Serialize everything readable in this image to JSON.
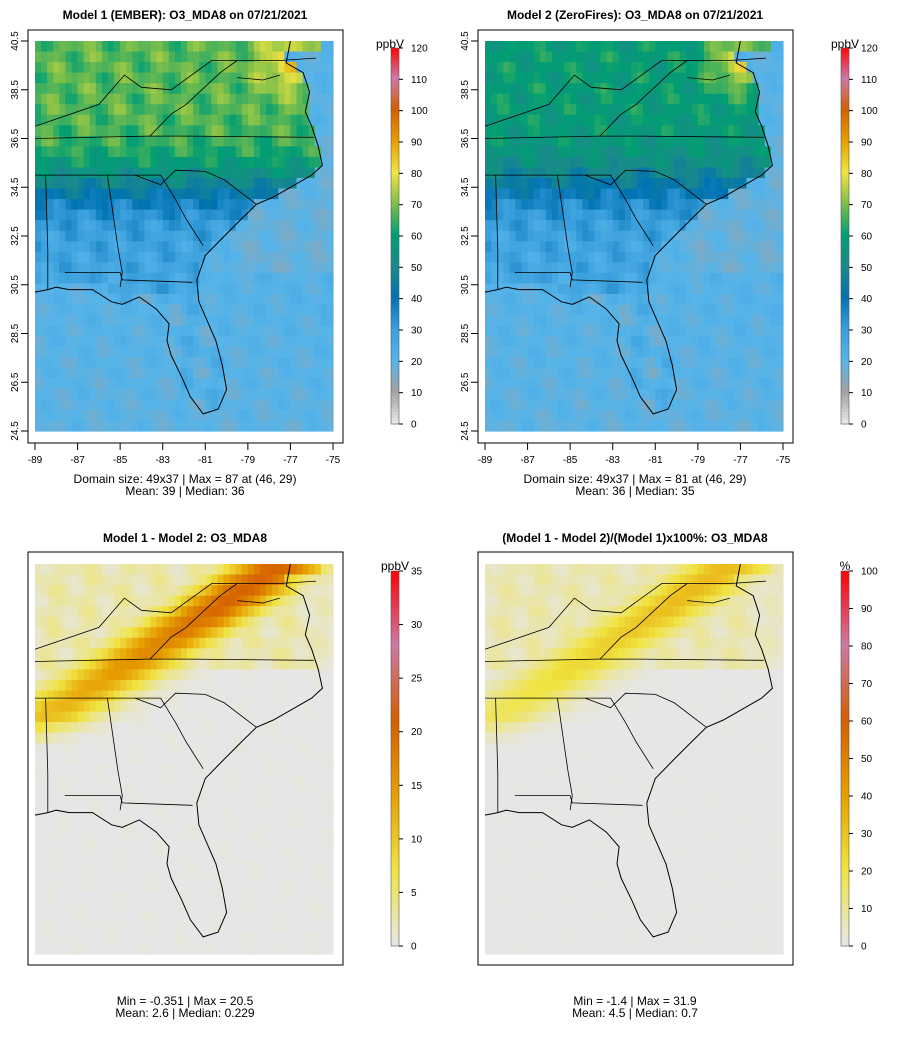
{
  "chart_data": [
    {
      "type": "heatmap",
      "panel_id": "model1",
      "title": "Model 1 (EMBER): O3_MDA8 on 07/21/2021",
      "variable": "O3_MDA8",
      "date": "07/21/2021",
      "x_ticks": [
        "-89",
        "-87",
        "-85",
        "-83",
        "-81",
        "-79",
        "-77",
        "-75"
      ],
      "y_ticks": [
        "24.5",
        "26.5",
        "28.5",
        "30.5",
        "32.5",
        "34.5",
        "36.5",
        "38.5",
        "40.5"
      ],
      "show_axes": true,
      "xlim": [
        -89,
        -75
      ],
      "ylim": [
        24.5,
        40.5
      ],
      "colorbar": {
        "unit": "ppbV",
        "ticks": [
          "0",
          "10",
          "20",
          "30",
          "40",
          "50",
          "60",
          "70",
          "80",
          "90",
          "100",
          "110",
          "120"
        ],
        "range": [
          0,
          120
        ],
        "palette": "ozone"
      },
      "grid": {
        "ncols": 49,
        "nrows": 37
      },
      "field": {
        "background": 22,
        "transition": 17,
        "amplitude": 40,
        "ne_boost": 15,
        "water_baseline": 19,
        "smoke_ridge": 0
      },
      "stats": [
        "Domain size: 49x37 | Max = 87 at (46, 29)",
        "Mean: 39 |  Median: 36"
      ]
    },
    {
      "type": "heatmap",
      "panel_id": "model2",
      "title": "Model 2 (ZeroFires): O3_MDA8 on 07/21/2021",
      "variable": "O3_MDA8",
      "date": "07/21/2021",
      "x_ticks": [
        "-89",
        "-87",
        "-85",
        "-83",
        "-81",
        "-79",
        "-77",
        "-75"
      ],
      "y_ticks": [
        "24.5",
        "26.5",
        "28.5",
        "30.5",
        "32.5",
        "34.5",
        "36.5",
        "38.5",
        "40.5"
      ],
      "show_axes": true,
      "xlim": [
        -89,
        -75
      ],
      "ylim": [
        24.5,
        40.5
      ],
      "colorbar": {
        "unit": "ppbV",
        "ticks": [
          "0",
          "10",
          "20",
          "30",
          "40",
          "50",
          "60",
          "70",
          "80",
          "90",
          "100",
          "110",
          "120"
        ],
        "range": [
          0,
          120
        ],
        "palette": "ozone"
      },
      "grid": {
        "ncols": 49,
        "nrows": 37
      },
      "field": {
        "background": 22,
        "transition": 16,
        "amplitude": 32,
        "ne_boost": 20,
        "water_baseline": 19,
        "smoke_ridge": 0
      },
      "stats": [
        "Domain size: 49x37 | Max = 81 at (46, 29)",
        "Mean: 36 |  Median: 35"
      ]
    },
    {
      "type": "heatmap",
      "panel_id": "diff",
      "title": "Model 1 - Model 2: O3_MDA8",
      "variable": "O3_MDA8",
      "show_axes": false,
      "xlim": [
        -89,
        -75
      ],
      "ylim": [
        24.5,
        40.5
      ],
      "colorbar": {
        "unit": "ppbV",
        "ticks": [
          "0",
          "5",
          "10",
          "15",
          "20",
          "25",
          "30",
          "35"
        ],
        "range": [
          0,
          35
        ],
        "palette": "difference"
      },
      "grid": {
        "ncols": 49,
        "nrows": 37
      },
      "field": {
        "smoke_ridge": 20.5,
        "ridge_floor": 3
      },
      "stats": [
        "Min = -0.351 | Max = 20.5",
        "Mean: 2.6 |  Median: 0.229"
      ]
    },
    {
      "type": "heatmap",
      "panel_id": "pctdiff",
      "title": "(Model 1 - Model 2)/(Model 1)x100%: O3_MDA8",
      "variable": "O3_MDA8",
      "show_axes": false,
      "xlim": [
        -89,
        -75
      ],
      "ylim": [
        24.5,
        40.5
      ],
      "colorbar": {
        "unit": "%",
        "ticks": [
          "0",
          "10",
          "20",
          "30",
          "40",
          "50",
          "60",
          "70",
          "80",
          "90",
          "100"
        ],
        "range": [
          0,
          100
        ],
        "palette": "difference"
      },
      "grid": {
        "ncols": 49,
        "nrows": 37
      },
      "field": {
        "smoke_ridge": 31.9,
        "ridge_floor": 8
      },
      "stats": [
        "Min = -1.4 | Max = 31.9",
        "Mean: 4.5 |  Median: 0.7"
      ]
    }
  ],
  "palettes": {
    "ozone": [
      "#e6e6e6",
      "#a2a2a2",
      "#56b4e9",
      "#3a9fdc",
      "#0072b2",
      "#1a8a8a",
      "#009e73",
      "#7dbf4a",
      "#f0e442",
      "#e69f00",
      "#d55e00",
      "#cc79a7",
      "#ff0000"
    ],
    "difference": [
      "#e6e6e6",
      "#f0e442",
      "#e69f00",
      "#d55e00",
      "#cc79a7",
      "#ff0000"
    ]
  },
  "colors": {
    "state_border": "#000000",
    "frame": "#000000",
    "coast": "#000000"
  }
}
